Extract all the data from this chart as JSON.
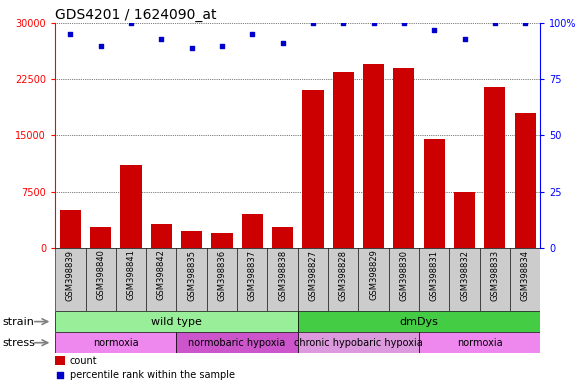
{
  "title": "GDS4201 / 1624090_at",
  "samples": [
    "GSM398839",
    "GSM398840",
    "GSM398841",
    "GSM398842",
    "GSM398835",
    "GSM398836",
    "GSM398837",
    "GSM398838",
    "GSM398827",
    "GSM398828",
    "GSM398829",
    "GSM398830",
    "GSM398831",
    "GSM398832",
    "GSM398833",
    "GSM398834"
  ],
  "counts": [
    5000,
    2800,
    11000,
    3200,
    2200,
    2000,
    4500,
    2700,
    21000,
    23500,
    24500,
    24000,
    14500,
    7500,
    21500,
    18000
  ],
  "percentile_ranks": [
    95,
    90,
    100,
    93,
    89,
    90,
    95,
    91,
    100,
    100,
    100,
    100,
    97,
    93,
    100,
    100
  ],
  "bar_color": "#cc0000",
  "dot_color": "#0000cc",
  "ylim_left": [
    0,
    30000
  ],
  "ylim_right": [
    0,
    100
  ],
  "yticks_left": [
    0,
    7500,
    15000,
    22500,
    30000
  ],
  "yticks_right": [
    0,
    25,
    50,
    75,
    100
  ],
  "strain_groups": [
    {
      "label": "wild type",
      "start": 0,
      "end": 8,
      "color": "#99ee99"
    },
    {
      "label": "dmDys",
      "start": 8,
      "end": 16,
      "color": "#44cc44"
    }
  ],
  "stress_groups": [
    {
      "label": "normoxia",
      "start": 0,
      "end": 4,
      "color": "#ee88ee"
    },
    {
      "label": "normobaric hypoxia",
      "start": 4,
      "end": 8,
      "color": "#cc55cc"
    },
    {
      "label": "chronic hypobaric hypoxia",
      "start": 8,
      "end": 12,
      "color": "#dd99dd"
    },
    {
      "label": "normoxia",
      "start": 12,
      "end": 16,
      "color": "#ee88ee"
    }
  ],
  "bar_color_legend": "#cc0000",
  "dot_color_legend": "#0000cc",
  "sample_bg_color": "#cccccc",
  "title_fontsize": 10,
  "tick_fontsize": 7,
  "label_fontsize": 7,
  "strain_fontsize": 8,
  "stress_fontsize": 7,
  "legend_fontsize": 7
}
